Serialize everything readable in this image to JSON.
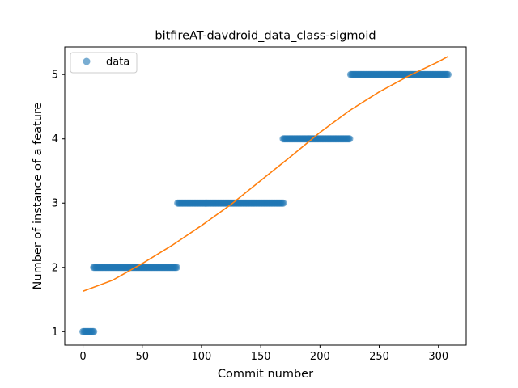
{
  "chart_data": {
    "type": "scatter",
    "title": "bitfireAT-davdroid_data_class-sigmoid",
    "xlabel": "Commit number",
    "ylabel": "Number of instance of a feature",
    "xlim": [
      -15.4,
      323.4
    ],
    "ylim": [
      0.79,
      5.43
    ],
    "xticks": [
      0,
      50,
      100,
      150,
      200,
      250,
      300
    ],
    "yticks": [
      1,
      2,
      3,
      4,
      5
    ],
    "grid": false,
    "legend": {
      "placement": "top-left",
      "entries": [
        "data"
      ]
    },
    "series": [
      {
        "name": "data",
        "kind": "scatter",
        "color": "#1f77b4",
        "alpha": 0.6,
        "segments": [
          {
            "x_start": 0,
            "x_end": 9,
            "y": 1
          },
          {
            "x_start": 9,
            "x_end": 79,
            "y": 2
          },
          {
            "x_start": 80,
            "x_end": 169,
            "y": 3
          },
          {
            "x_start": 169,
            "x_end": 225,
            "y": 4
          },
          {
            "x_start": 226,
            "x_end": 308,
            "y": 5
          }
        ]
      },
      {
        "kind": "line",
        "color": "#ff7f0e",
        "x": [
          0,
          25,
          50,
          75,
          100,
          125,
          150,
          175,
          200,
          225,
          250,
          275,
          300,
          308
        ],
        "y": [
          1.63,
          1.8,
          2.06,
          2.34,
          2.65,
          2.98,
          3.35,
          3.72,
          4.1,
          4.44,
          4.73,
          4.98,
          5.2,
          5.28
        ]
      }
    ]
  }
}
